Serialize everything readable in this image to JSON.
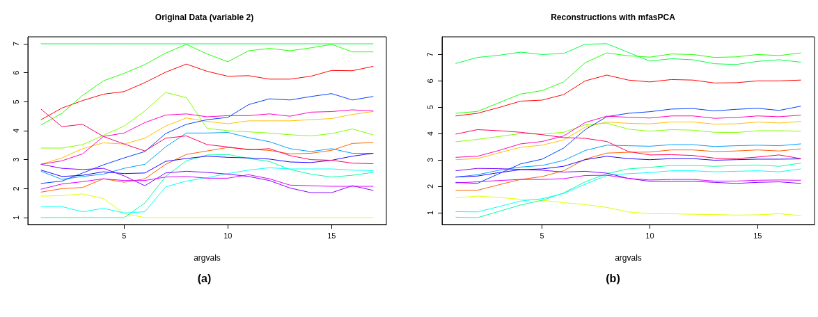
{
  "chart_data": [
    {
      "type": "line",
      "title": "Original Data (variable 2)",
      "xlabel": "argvals",
      "annotations": [
        "(a)"
      ],
      "marker": "none",
      "grid": false,
      "xlim": [
        0.36,
        17.64
      ],
      "ylim": [
        0.76,
        7.24
      ],
      "xticks": [
        5,
        10,
        15
      ],
      "yticks": [
        1,
        2,
        3,
        4,
        5,
        6,
        7
      ],
      "x": [
        1,
        2,
        3,
        4,
        5,
        6,
        7,
        8,
        9,
        10,
        11,
        12,
        13,
        14,
        15,
        16,
        17
      ],
      "series": [
        {
          "color": "#ff0000",
          "values": [
            4.38,
            4.78,
            5.04,
            5.26,
            5.35,
            5.66,
            6.02,
            6.3,
            6.05,
            5.88,
            5.9,
            5.78,
            5.78,
            5.88,
            6.08,
            6.07,
            6.22
          ]
        },
        {
          "color": "#ff6000",
          "values": [
            1.88,
            2.0,
            2.04,
            2.34,
            2.22,
            2.34,
            2.84,
            3.18,
            3.3,
            3.42,
            3.36,
            3.32,
            3.2,
            3.22,
            3.32,
            3.56,
            3.59
          ]
        },
        {
          "color": "#ffbf00",
          "values": [
            2.84,
            3.06,
            3.38,
            3.58,
            3.54,
            3.74,
            4.16,
            4.44,
            4.32,
            4.24,
            4.34,
            4.34,
            4.34,
            4.38,
            4.42,
            4.56,
            4.66
          ]
        },
        {
          "color": "#dfff00",
          "values": [
            1.74,
            1.76,
            1.82,
            1.66,
            1.14,
            1.0,
            1.0,
            1.0,
            1.0,
            1.0,
            1.0,
            1.0,
            1.0,
            1.0,
            1.0,
            1.0,
            1.0
          ]
        },
        {
          "color": "#80ff00",
          "values": [
            3.4,
            3.4,
            3.52,
            3.84,
            4.16,
            4.68,
            5.32,
            5.14,
            4.08,
            4.0,
            3.96,
            3.92,
            3.86,
            3.82,
            3.9,
            4.06,
            3.86
          ]
        },
        {
          "color": "#20ff00",
          "values": [
            4.2,
            4.6,
            5.22,
            5.72,
            5.98,
            6.28,
            6.68,
            6.98,
            6.65,
            6.38,
            6.76,
            6.84,
            6.76,
            6.86,
            6.98,
            6.72,
            6.72
          ]
        },
        {
          "color": "#00ff40",
          "values": [
            7,
            7,
            7,
            7,
            7,
            7,
            7,
            7,
            7,
            7,
            7,
            7,
            7,
            7,
            7,
            7,
            7
          ]
        },
        {
          "color": "#00ff9f",
          "values": [
            1.0,
            1.0,
            1.0,
            1.0,
            1.0,
            1.5,
            2.42,
            2.96,
            3.16,
            3.18,
            3.04,
            2.94,
            2.66,
            2.5,
            2.4,
            2.46,
            2.56
          ]
        },
        {
          "color": "#00ffff",
          "values": [
            1.38,
            1.38,
            1.2,
            1.32,
            1.16,
            1.2,
            2.06,
            2.26,
            2.38,
            2.52,
            2.64,
            2.72,
            2.68,
            2.68,
            2.68,
            2.64,
            2.62
          ]
        },
        {
          "color": "#009fff",
          "values": [
            2.6,
            2.32,
            2.42,
            2.5,
            2.7,
            2.84,
            3.44,
            3.92,
            3.92,
            3.94,
            3.76,
            3.62,
            3.38,
            3.28,
            3.38,
            3.22,
            3.22
          ]
        },
        {
          "color": "#0040ff",
          "values": [
            2.18,
            2.26,
            2.54,
            2.82,
            3.06,
            3.28,
            3.9,
            4.22,
            4.38,
            4.46,
            4.9,
            5.1,
            5.06,
            5.18,
            5.28,
            5.06,
            5.18
          ]
        },
        {
          "color": "#2000ff",
          "values": [
            2.64,
            2.42,
            2.46,
            2.58,
            2.52,
            2.54,
            2.94,
            3.04,
            3.12,
            3.08,
            3.06,
            3.02,
            2.92,
            2.9,
            2.98,
            3.12,
            3.22
          ]
        },
        {
          "color": "#8000ff",
          "values": [
            2.84,
            2.7,
            2.66,
            2.7,
            2.44,
            2.1,
            2.54,
            2.6,
            2.56,
            2.5,
            2.42,
            2.28,
            2.02,
            1.86,
            1.86,
            2.1,
            1.94
          ]
        },
        {
          "color": "#df00ff",
          "values": [
            1.98,
            2.16,
            2.24,
            2.34,
            2.28,
            2.28,
            2.4,
            2.42,
            2.36,
            2.36,
            2.48,
            2.34,
            2.12,
            2.1,
            2.08,
            2.08,
            2.08
          ]
        },
        {
          "color": "#ff00bf",
          "values": [
            2.84,
            2.96,
            3.2,
            3.8,
            3.92,
            4.28,
            4.54,
            4.58,
            4.48,
            4.52,
            4.52,
            4.58,
            4.5,
            4.64,
            4.66,
            4.72,
            4.68
          ]
        },
        {
          "color": "#ff0060",
          "values": [
            4.74,
            4.14,
            4.22,
            3.8,
            3.54,
            3.3,
            3.74,
            3.82,
            3.52,
            3.44,
            3.34,
            3.38,
            3.14,
            3.0,
            2.98,
            2.88,
            2.86
          ]
        }
      ]
    },
    {
      "type": "line",
      "title": "Reconstructions with mfasPCA",
      "xlabel": "argvals",
      "annotations": [
        "(b)"
      ],
      "marker": "none",
      "grid": false,
      "xlim": [
        0.36,
        17.64
      ],
      "ylim": [
        0.55,
        7.67
      ],
      "xticks": [
        5,
        10,
        15
      ],
      "yticks": [
        1,
        2,
        3,
        4,
        5,
        6,
        7
      ],
      "x": [
        1,
        2,
        3,
        4,
        5,
        6,
        7,
        8,
        9,
        10,
        11,
        12,
        13,
        14,
        15,
        16,
        17
      ],
      "series": [
        {
          "color": "#ff0000",
          "values": [
            4.67,
            4.77,
            4.99,
            5.23,
            5.27,
            5.48,
            6.0,
            6.22,
            6.03,
            5.96,
            6.05,
            6.03,
            5.92,
            5.93,
            6.0,
            6.0,
            6.03
          ]
        },
        {
          "color": "#ff6000",
          "values": [
            1.85,
            1.85,
            2.06,
            2.26,
            2.37,
            2.59,
            3.03,
            3.26,
            3.29,
            3.3,
            3.38,
            3.38,
            3.32,
            3.34,
            3.38,
            3.34,
            3.42
          ]
        },
        {
          "color": "#ffbf00",
          "values": [
            3.01,
            3.05,
            3.27,
            3.48,
            3.56,
            3.76,
            4.24,
            4.44,
            4.39,
            4.37,
            4.44,
            4.44,
            4.36,
            4.37,
            4.44,
            4.4,
            4.46
          ]
        },
        {
          "color": "#dfff00",
          "values": [
            1.56,
            1.63,
            1.58,
            1.51,
            1.47,
            1.38,
            1.31,
            1.2,
            1.03,
            0.96,
            0.96,
            0.94,
            0.93,
            0.91,
            0.92,
            0.96,
            0.89
          ]
        },
        {
          "color": "#80ff00",
          "values": [
            3.69,
            3.78,
            3.89,
            4.0,
            3.98,
            4.05,
            4.33,
            4.4,
            4.17,
            4.09,
            4.15,
            4.13,
            4.05,
            4.04,
            4.11,
            4.11,
            4.09
          ]
        },
        {
          "color": "#20ff00",
          "values": [
            4.77,
            4.84,
            5.17,
            5.5,
            5.63,
            5.96,
            6.69,
            7.06,
            6.95,
            6.9,
            7.02,
            7.0,
            6.89,
            6.91,
            7.0,
            6.96,
            7.06
          ]
        },
        {
          "color": "#00ff40",
          "values": [
            6.66,
            6.89,
            6.97,
            7.09,
            7.0,
            7.04,
            7.39,
            7.41,
            7.08,
            6.75,
            6.84,
            6.8,
            6.65,
            6.62,
            6.74,
            6.8,
            6.71
          ]
        },
        {
          "color": "#00ff9f",
          "values": [
            0.83,
            0.81,
            1.05,
            1.29,
            1.47,
            1.75,
            2.17,
            2.48,
            2.66,
            2.72,
            2.79,
            2.79,
            2.76,
            2.79,
            2.81,
            2.76,
            2.88
          ]
        },
        {
          "color": "#00ffff",
          "values": [
            1.04,
            1.03,
            1.23,
            1.44,
            1.53,
            1.73,
            2.08,
            2.41,
            2.48,
            2.52,
            2.59,
            2.59,
            2.55,
            2.57,
            2.59,
            2.55,
            2.66
          ]
        },
        {
          "color": "#009fff",
          "values": [
            2.35,
            2.44,
            2.61,
            2.73,
            2.79,
            2.98,
            3.36,
            3.56,
            3.54,
            3.52,
            3.58,
            3.58,
            3.51,
            3.54,
            3.56,
            3.54,
            3.61
          ]
        },
        {
          "color": "#0040ff",
          "values": [
            2.15,
            2.11,
            2.48,
            2.85,
            3.03,
            3.45,
            4.15,
            4.64,
            4.77,
            4.83,
            4.93,
            4.95,
            4.86,
            4.92,
            4.96,
            4.88,
            5.04
          ]
        },
        {
          "color": "#2000ff",
          "values": [
            2.35,
            2.39,
            2.52,
            2.63,
            2.66,
            2.76,
            3.01,
            3.14,
            3.05,
            3.01,
            3.05,
            3.05,
            2.99,
            3.01,
            3.03,
            3.03,
            3.04
          ]
        },
        {
          "color": "#8000ff",
          "values": [
            2.59,
            2.68,
            2.67,
            2.64,
            2.61,
            2.54,
            2.57,
            2.5,
            2.3,
            2.19,
            2.19,
            2.19,
            2.15,
            2.11,
            2.15,
            2.17,
            2.11
          ]
        },
        {
          "color": "#df00ff",
          "values": [
            2.13,
            2.17,
            2.22,
            2.26,
            2.26,
            2.29,
            2.41,
            2.42,
            2.3,
            2.24,
            2.26,
            2.26,
            2.2,
            2.2,
            2.23,
            2.24,
            2.23
          ]
        },
        {
          "color": "#ff00bf",
          "values": [
            3.1,
            3.14,
            3.36,
            3.61,
            3.7,
            3.91,
            4.42,
            4.66,
            4.62,
            4.59,
            4.67,
            4.67,
            4.58,
            4.61,
            4.67,
            4.64,
            4.7
          ]
        },
        {
          "color": "#ff0060",
          "values": [
            3.98,
            4.15,
            4.11,
            4.05,
            3.96,
            3.85,
            3.82,
            3.7,
            3.32,
            3.19,
            3.2,
            3.17,
            3.07,
            3.05,
            3.11,
            3.19,
            3.05
          ]
        }
      ]
    }
  ]
}
